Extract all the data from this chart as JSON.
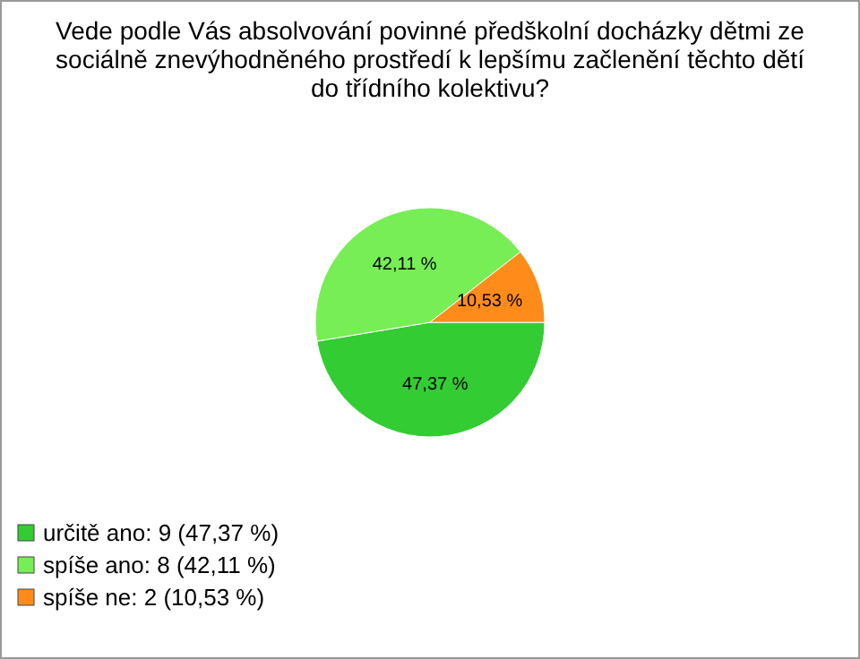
{
  "chart_data": {
    "type": "pie",
    "title": "Vede podle Vás absolvování povinné předškolní docházky dětmi ze sociálně znevýhodněného prostředí k lepšímu začlenění těchto dětí do třídního kolektivu?",
    "categories": [
      "určitě ano: 9 (47,37 %)",
      "spíše ano: 8 (42,11 %)",
      "spíše ne: 2 (10,53 %)"
    ],
    "values": [
      47.37,
      42.11,
      10.53
    ],
    "value_labels": [
      "47,37 %",
      "42,11 %",
      "10,53 %"
    ],
    "colors": [
      "#33cc33",
      "#77ee55",
      "#ff8c1a"
    ],
    "legend": "bottom left"
  }
}
